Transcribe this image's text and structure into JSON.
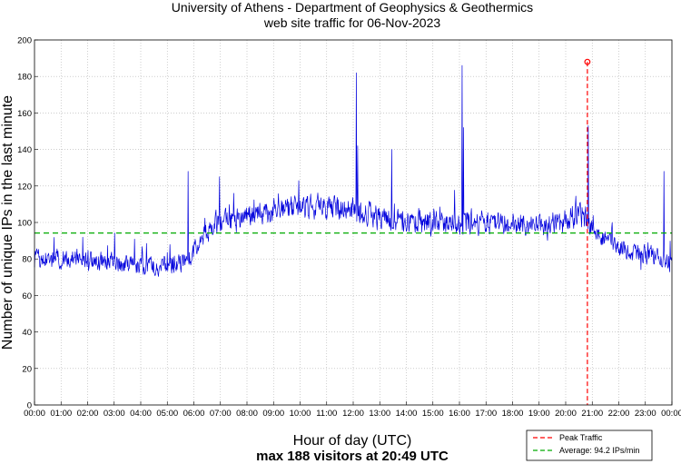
{
  "chart_data": {
    "type": "line",
    "title": [
      "University of Athens - Department of Geophysics & Geothermics",
      "web site traffic for 06-Nov-2023"
    ],
    "xlabel": "Hour of day (UTC)",
    "xlabel_sub": "max 188 visitors at 20:49 UTC",
    "ylabel": "Number of unique IPs in the last minute",
    "xlim": [
      0,
      24
    ],
    "ylim": [
      0,
      200
    ],
    "x_ticks": [
      "00:00",
      "01:00",
      "02:00",
      "03:00",
      "04:00",
      "05:00",
      "06:00",
      "07:00",
      "08:00",
      "09:00",
      "10:00",
      "11:00",
      "12:00",
      "13:00",
      "14:00",
      "15:00",
      "16:00",
      "17:00",
      "18:00",
      "19:00",
      "20:00",
      "21:00",
      "22:00",
      "23:00",
      "00:00"
    ],
    "y_ticks": [
      "0",
      "20",
      "40",
      "60",
      "80",
      "100",
      "120",
      "140",
      "160",
      "180",
      "200"
    ],
    "grid": true,
    "series": [
      {
        "name": "traffic",
        "color": "#0000dd",
        "x": [
          0,
          0.5,
          1,
          1.5,
          2,
          2.5,
          3,
          3.5,
          4,
          4.5,
          5,
          5.5,
          5.8,
          6,
          6.3,
          6.6,
          7,
          7.5,
          8,
          8.5,
          9,
          9.5,
          10,
          10.5,
          11,
          11.5,
          12,
          12.5,
          13,
          13.5,
          14,
          14.5,
          15,
          15.5,
          16,
          16.5,
          17,
          17.5,
          18,
          18.5,
          19,
          19.5,
          20,
          20.3,
          20.6,
          20.8,
          21,
          21.5,
          22,
          22.5,
          23,
          23.5,
          24
        ],
        "y": [
          80,
          79,
          80,
          81,
          80,
          79,
          78,
          77,
          76,
          76,
          77,
          78,
          80,
          84,
          91,
          97,
          100,
          101,
          103,
          105,
          106,
          107,
          108,
          109,
          108,
          108,
          107,
          105,
          102,
          101,
          100,
          101,
          99,
          99,
          100,
          101,
          100,
          100,
          100,
          99,
          98,
          99,
          101,
          104,
          103,
          102,
          96,
          91,
          86,
          84,
          82,
          81,
          78
        ]
      }
    ],
    "spikes": [
      {
        "x": 5.78,
        "y": 128
      },
      {
        "x": 6.97,
        "y": 125
      },
      {
        "x": 12.12,
        "y": 182
      },
      {
        "x": 12.17,
        "y": 142
      },
      {
        "x": 13.45,
        "y": 140
      },
      {
        "x": 16.1,
        "y": 186
      },
      {
        "x": 16.15,
        "y": 152
      },
      {
        "x": 20.85,
        "y": 153
      },
      {
        "x": 23.7,
        "y": 128
      }
    ],
    "peak": {
      "x": 20.817,
      "y": 188,
      "label": "Peak Traffic",
      "color": "#ff0000"
    },
    "average": {
      "y": 94.2,
      "label": "Average: 94.2 IPs/min",
      "color": "#00aa00"
    },
    "legend_position": "bottom-right"
  }
}
